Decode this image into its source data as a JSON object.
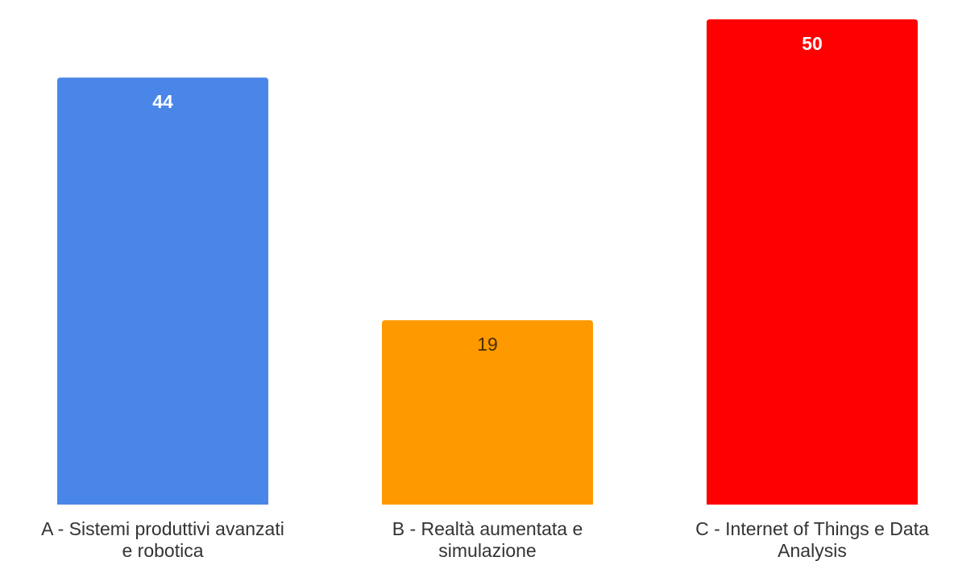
{
  "chart_data": {
    "type": "bar",
    "categories": [
      "A - Sistemi produttivi avanzati e robotica",
      "B - Realtà aumentata e simulazione",
      "C - Internet of Things e Data Analysis"
    ],
    "category_lines": [
      [
        "A - Sistemi produttivi avanzati",
        "e robotica"
      ],
      [
        "B - Realtà aumentata e",
        "simulazione"
      ],
      [
        "C - Internet of Things e Data",
        "Analysis"
      ]
    ],
    "values": [
      44,
      19,
      50
    ],
    "colors": [
      "#4a86e8",
      "#ff9900",
      "#ff0000"
    ],
    "label_colors": [
      "#ffffff",
      "#4a2d00",
      "#ffffff"
    ],
    "ylim": [
      0,
      52
    ]
  }
}
